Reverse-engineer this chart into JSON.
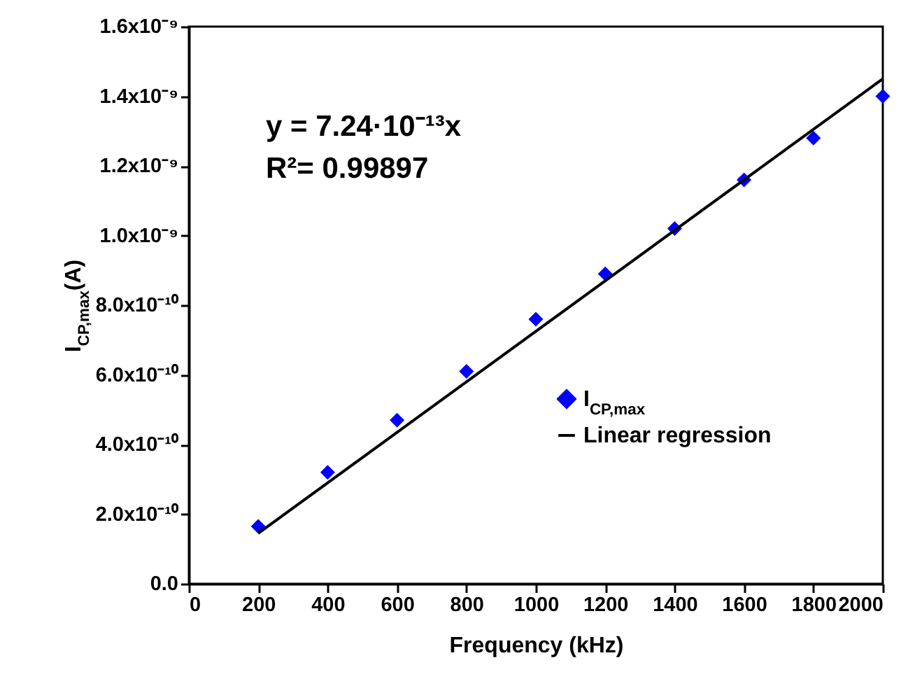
{
  "chart_data": {
    "type": "scatter",
    "xlabel": "Frequency (kHz)",
    "ylabel": "I$_{CP,max}$(A)",
    "x": [
      200,
      400,
      600,
      800,
      1000,
      1200,
      1400,
      1600,
      1800,
      2000
    ],
    "series": [
      {
        "name": "I$_{CP,max}$",
        "color": "#0000ff",
        "marker": "diamond",
        "values": [
          1.65e-10,
          3.2e-10,
          4.7e-10,
          6.1e-10,
          7.6e-10,
          8.9e-10,
          1.02e-09,
          1.16e-09,
          1.28e-09,
          1.4e-09
        ]
      },
      {
        "name": "Linear regression",
        "color": "#000000",
        "type": "line",
        "x": [
          200,
          2000
        ],
        "values": [
          1.45e-10,
          1.45e-09
        ]
      }
    ],
    "xlim": [
      0,
      2000
    ],
    "xticks": [
      0,
      200,
      400,
      600,
      800,
      1000,
      1200,
      1400,
      1600,
      1800,
      2000
    ],
    "ylim": [
      0,
      1.6e-09
    ],
    "yticks": [
      {
        "value": 0,
        "label": "0.0"
      },
      {
        "value": 2e-10,
        "label": "2.0x10⁻¹⁰"
      },
      {
        "value": 4e-10,
        "label": "4.0x10⁻¹⁰"
      },
      {
        "value": 6e-10,
        "label": "6.0x10⁻¹⁰"
      },
      {
        "value": 8e-10,
        "label": "8.0x10⁻¹⁰"
      },
      {
        "value": 1e-09,
        "label": "1.0x10⁻⁹"
      },
      {
        "value": 1.2e-09,
        "label": "1.2x10⁻⁹"
      },
      {
        "value": 1.4e-09,
        "label": "1.4x10⁻⁹"
      },
      {
        "value": 1.6e-09,
        "label": "1.6x10⁻⁹"
      }
    ],
    "annotations": [
      "y = 7.24·10⁻¹³x",
      "R²= 0.99897"
    ],
    "grid": false,
    "legend": "right"
  }
}
